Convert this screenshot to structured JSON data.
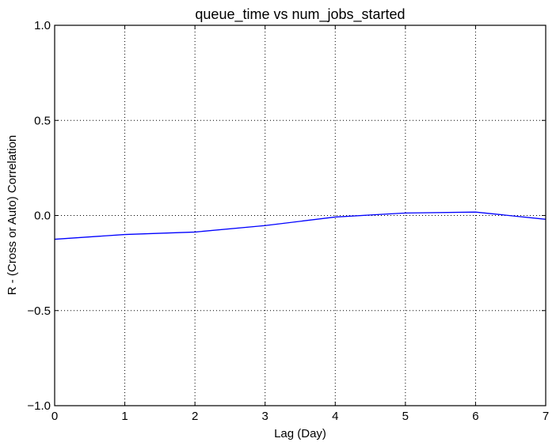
{
  "chart_data": {
    "type": "line",
    "title": "queue_time vs num_jobs_started",
    "xlabel": "Lag (Day)",
    "ylabel": "R - (Cross or Auto) Correlation",
    "xlim": [
      0,
      7
    ],
    "ylim": [
      -1.0,
      1.0
    ],
    "x_ticks": [
      0,
      1,
      2,
      3,
      4,
      5,
      6,
      7
    ],
    "x_tick_labels": [
      "0",
      "1",
      "2",
      "3",
      "4",
      "5",
      "6",
      "7"
    ],
    "y_ticks": [
      -1.0,
      -0.5,
      0.0,
      0.5,
      1.0
    ],
    "y_tick_labels": [
      "−1.0",
      "−0.5",
      "0.0",
      "0.5",
      "1.0"
    ],
    "grid": true,
    "series": [
      {
        "color": "#0000ff",
        "x": [
          0,
          1,
          2,
          3,
          4,
          5,
          6,
          7
        ],
        "y": [
          -0.125,
          -0.1,
          -0.087,
          -0.053,
          -0.008,
          0.013,
          0.018,
          -0.02
        ]
      }
    ]
  }
}
